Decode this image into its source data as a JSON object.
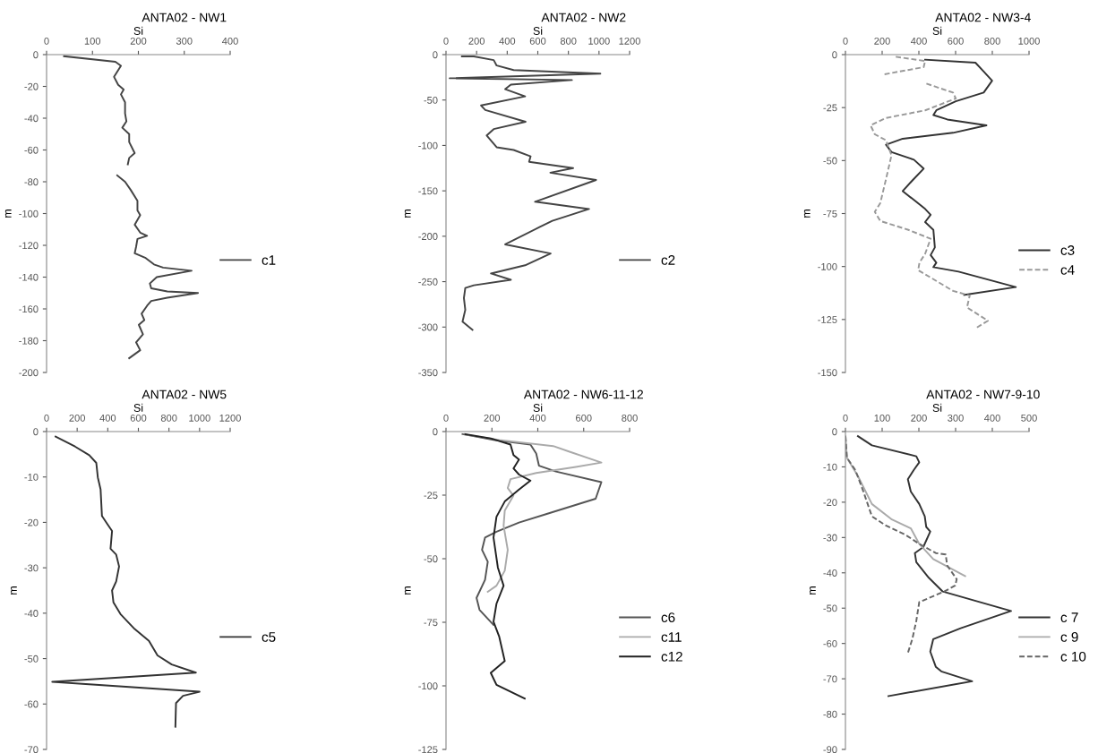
{
  "chart_data": [
    {
      "type": "line",
      "title": "ANTA02 - NW1",
      "xlabel": "Si",
      "ylabel": "m",
      "xlim": [
        0,
        400
      ],
      "xticks": [
        0,
        100,
        200,
        300,
        400
      ],
      "ylim": [
        -200,
        0
      ],
      "yticks": [
        0,
        -20,
        -40,
        -60,
        -80,
        -100,
        -120,
        -140,
        -160,
        -180,
        -200
      ],
      "legend": "right",
      "series": [
        {
          "name": "c1",
          "color": "#444444",
          "x": [
            38,
            150,
            162,
            147,
            156,
            168,
            162,
            171,
            171,
            174,
            165,
            180,
            180,
            192,
            180,
            177,
            null,
            154,
            171,
            183,
            198,
            198,
            204,
            192,
            204,
            219,
            198,
            195,
            192,
            216,
            234,
            254,
            316,
            240,
            225,
            228,
            263,
            330,
            263,
            228,
            219,
            207,
            213,
            201,
            210,
            195,
            204,
            180
          ],
          "values": [
            -1,
            -4.5,
            -7,
            -14,
            -19,
            -22,
            -25,
            -30,
            -37,
            -42,
            -46,
            -50,
            -55,
            -62,
            -65,
            -69,
            null,
            -76,
            -80,
            -85,
            -92,
            -98,
            -101,
            -107,
            -112,
            -114,
            -116,
            -121,
            -125,
            -128,
            -132,
            -134,
            -136,
            -140,
            -144,
            -147,
            -149,
            -150,
            -153,
            -155,
            -158,
            -163,
            -167,
            -170,
            -176,
            -181,
            -186,
            -191
          ]
        }
      ]
    },
    {
      "type": "line",
      "title": "ANTA02 - NW2",
      "xlabel": "Si",
      "ylabel": "m",
      "xlim": [
        0,
        1200
      ],
      "xticks": [
        0,
        200,
        400,
        600,
        800,
        1000,
        1200
      ],
      "ylim": [
        -350,
        0
      ],
      "yticks": [
        0,
        -50,
        -100,
        -150,
        -200,
        -250,
        -300,
        -350
      ],
      "legend": "right",
      "series": [
        {
          "name": "c2",
          "color": "#444444",
          "x": [
            104,
            182,
            312,
            331,
            442,
            1009,
            24,
            823,
            424,
            387,
            517,
            229,
            257,
            520,
            312,
            266,
            331,
            442,
            553,
            543,
            831,
            682,
            981,
            582,
            935,
            695,
            611,
            387,
            684,
            517,
            294,
            424,
            182,
            126,
            117,
            126,
            108,
            173
          ],
          "values": [
            -2,
            -2,
            -6,
            -12,
            -17,
            -21,
            -26,
            -28,
            -33,
            -38,
            -46,
            -56,
            -61,
            -74,
            -82,
            -89,
            -102,
            -105,
            -112,
            -118,
            -125,
            -130,
            -138,
            -162,
            -170,
            -183,
            -190,
            -209,
            -219,
            -232,
            -241,
            -248,
            -254,
            -257,
            -268,
            -281,
            -294,
            -303
          ]
        }
      ]
    },
    {
      "type": "line",
      "title": "ANTA02 - NW3-4",
      "xlabel": "Si",
      "ylabel": "m",
      "xlim": [
        0,
        1000
      ],
      "xticks": [
        0,
        200,
        400,
        600,
        800,
        1000
      ],
      "ylim": [
        -150,
        0
      ],
      "yticks": [
        0,
        -25,
        -50,
        -75,
        -100,
        -125,
        -150
      ],
      "legend": "right",
      "series": [
        {
          "name": "c3",
          "color": "#333333",
          "x": [
            434,
            708,
            753,
            799,
            753,
            601,
            495,
            479,
            555,
            768,
            586,
            312,
            221,
            251,
            373,
            426,
            358,
            312,
            373,
            434,
            464,
            434,
            479,
            487,
            464,
            495,
            479,
            616,
            928,
            647
          ],
          "values": [
            -2.4,
            -3.8,
            -8,
            -12.3,
            -17.9,
            -22,
            -26.3,
            -28.5,
            -30.6,
            -33.4,
            -36.9,
            -39.7,
            -42.5,
            -46,
            -49.6,
            -53.8,
            -60,
            -64.4,
            -68.6,
            -72.8,
            -75.6,
            -79,
            -82.7,
            -91,
            -94.6,
            -98.2,
            -100.3,
            -102.4,
            -109.7,
            -113.4
          ]
        },
        {
          "name": "c4",
          "color": "#999999",
          "line_style": "dashed",
          "x": [
            274,
            434,
            426,
            205,
            null,
            441,
            586,
            601,
            434,
            221,
            137,
            160,
            221,
            251,
            221,
            190,
            160,
            190,
            343,
            464,
            434,
            403,
            396,
            464,
            586,
            677,
            662,
            776,
            708
          ],
          "values": [
            -1,
            -3,
            -5.9,
            -9.4,
            null,
            -13.7,
            -17.9,
            -20.7,
            -26.3,
            -29.9,
            -33.4,
            -37.6,
            -40.4,
            -47.5,
            -58.7,
            -70,
            -74.2,
            -78.5,
            -82.7,
            -86.9,
            -94,
            -98.2,
            -101.7,
            -105.2,
            -111.5,
            -113.7,
            -119.3,
            -125.6,
            -129.2
          ]
        }
      ]
    },
    {
      "type": "line",
      "title": "ANTA02 - NW5",
      "xlabel": "Si",
      "ylabel": "m",
      "xlim": [
        0,
        1200
      ],
      "xticks": [
        0,
        200,
        400,
        600,
        800,
        1000,
        1200
      ],
      "ylim": [
        -70,
        0
      ],
      "yticks": [
        0,
        -10,
        -20,
        -30,
        -40,
        -50,
        -60,
        -70
      ],
      "legend": "right",
      "series": [
        {
          "name": "c5",
          "color": "#333333",
          "x": [
            59,
            186,
            279,
            325,
            335,
            353,
            362,
            400,
            428,
            418,
            455,
            474,
            455,
            428,
            437,
            483,
            576,
            669,
            725,
            818,
            976,
            37,
            1000,
            892,
            846,
            842
          ],
          "values": [
            -1.1,
            -3.3,
            -5.2,
            -6.9,
            -10.1,
            -12.7,
            -18.6,
            -20.5,
            -21.9,
            -25.8,
            -27.1,
            -29.7,
            -33,
            -35,
            -37.6,
            -40.2,
            -43.5,
            -46.1,
            -49.3,
            -51.3,
            -53.1,
            -55.1,
            -57.3,
            -58.2,
            -59.8,
            -65
          ]
        }
      ]
    },
    {
      "type": "line",
      "title": "ANTA02 - NW6-11-12",
      "xlabel": "Si",
      "ylabel": "m",
      "xlim": [
        0,
        800
      ],
      "xticks": [
        0,
        200,
        400,
        600,
        800
      ],
      "ylim": [
        -125,
        0
      ],
      "yticks": [
        0,
        -25,
        -50,
        -75,
        -100,
        -125
      ],
      "legend": "right",
      "series": [
        {
          "name": "c6",
          "color": "#555555",
          "x": [
            72,
            207,
            368,
            393,
            405,
            479,
            677,
            652,
            442,
            318,
            220,
            170,
            157,
            182,
            170,
            133,
            146,
            207
          ],
          "values": [
            -1,
            -3.3,
            -5.1,
            -8.6,
            -13.4,
            -15.7,
            -19.9,
            -26.4,
            -32.3,
            -35.8,
            -39.4,
            -41.7,
            -46.5,
            -51.2,
            -58.3,
            -65.4,
            -70.1,
            -76
          ]
        },
        {
          "name": "c11",
          "color": "#aaaaaa",
          "x": [
            84,
            232,
            467,
            541,
            677,
            566,
            393,
            281,
            269,
            294,
            256,
            251,
            269,
            256,
            220,
            182
          ],
          "values": [
            -1.2,
            -3.3,
            -5.7,
            -8,
            -12.2,
            -13.9,
            -16.3,
            -18.7,
            -22.2,
            -25.2,
            -31.1,
            -37,
            -46.5,
            -54.7,
            -60.6,
            -63
          ]
        },
        {
          "name": "c12",
          "color": "#222222",
          "x": [
            84,
            195,
            281,
            294,
            318,
            294,
            318,
            368,
            318,
            256,
            220,
            207,
            226,
            251,
            220,
            207,
            232,
            256,
            195,
            220,
            343
          ],
          "values": [
            -1,
            -2.7,
            -5.1,
            -9.2,
            -11,
            -14.5,
            -16.9,
            -19.3,
            -22.8,
            -27.5,
            -33.5,
            -41.7,
            -53.5,
            -60.6,
            -67.7,
            -74.8,
            -80.7,
            -90.2,
            -94.9,
            -99.6,
            -105
          ]
        }
      ]
    },
    {
      "type": "line",
      "title": "ANTA02 - NW7-9-10",
      "xlabel": "Si",
      "ylabel": "m",
      "xlim": [
        0,
        500
      ],
      "xticks": [
        0,
        100,
        200,
        300,
        400,
        500
      ],
      "ylim": [
        -90,
        0
      ],
      "yticks": [
        0,
        -10,
        -20,
        -30,
        -40,
        -50,
        -60,
        -70,
        -80,
        -90
      ],
      "legend": "right",
      "series": [
        {
          "name": "c 7",
          "color": "#333333",
          "x": [
            34,
            72,
            193,
            201,
            186,
            170,
            178,
            201,
            216,
            220,
            231,
            212,
            189,
            193,
            227,
            265,
            451,
            314,
            239,
            231,
            246,
            261,
            345,
            117
          ],
          "values": [
            -1.3,
            -3.9,
            -7,
            -8.7,
            -10.9,
            -13.5,
            -17,
            -20.5,
            -24,
            -27,
            -28.3,
            -32.7,
            -34.4,
            -37,
            -41.4,
            -45.3,
            -50.8,
            -55.7,
            -58.8,
            -62.3,
            -66.6,
            -67.9,
            -70.7,
            -74.9
          ]
        },
        {
          "name": "c 9",
          "color": "#aaaaaa",
          "x": [
            0,
            4,
            34,
            72,
            125,
            178,
            201,
            239,
            326
          ],
          "values": [
            -1.3,
            -7.4,
            -12.6,
            -20.5,
            -24.8,
            -27.4,
            -31.8,
            -36.1,
            -40.9
          ]
        },
        {
          "name": "c 10",
          "color": "#666666",
          "line_style": "dashed",
          "x": [
            0,
            4,
            27,
            49,
            72,
            110,
            163,
            201,
            246,
            273,
            277,
            303,
            299,
            269,
            239,
            201,
            193,
            182,
            170
          ],
          "values": [
            -1.3,
            -7.4,
            -10.9,
            -17,
            -24,
            -26.6,
            -29.2,
            -31.8,
            -34.4,
            -34.8,
            -37.9,
            -41.8,
            -43.6,
            -45.3,
            -46.6,
            -48.3,
            -53.6,
            -58.8,
            -62.7
          ]
        }
      ]
    }
  ]
}
